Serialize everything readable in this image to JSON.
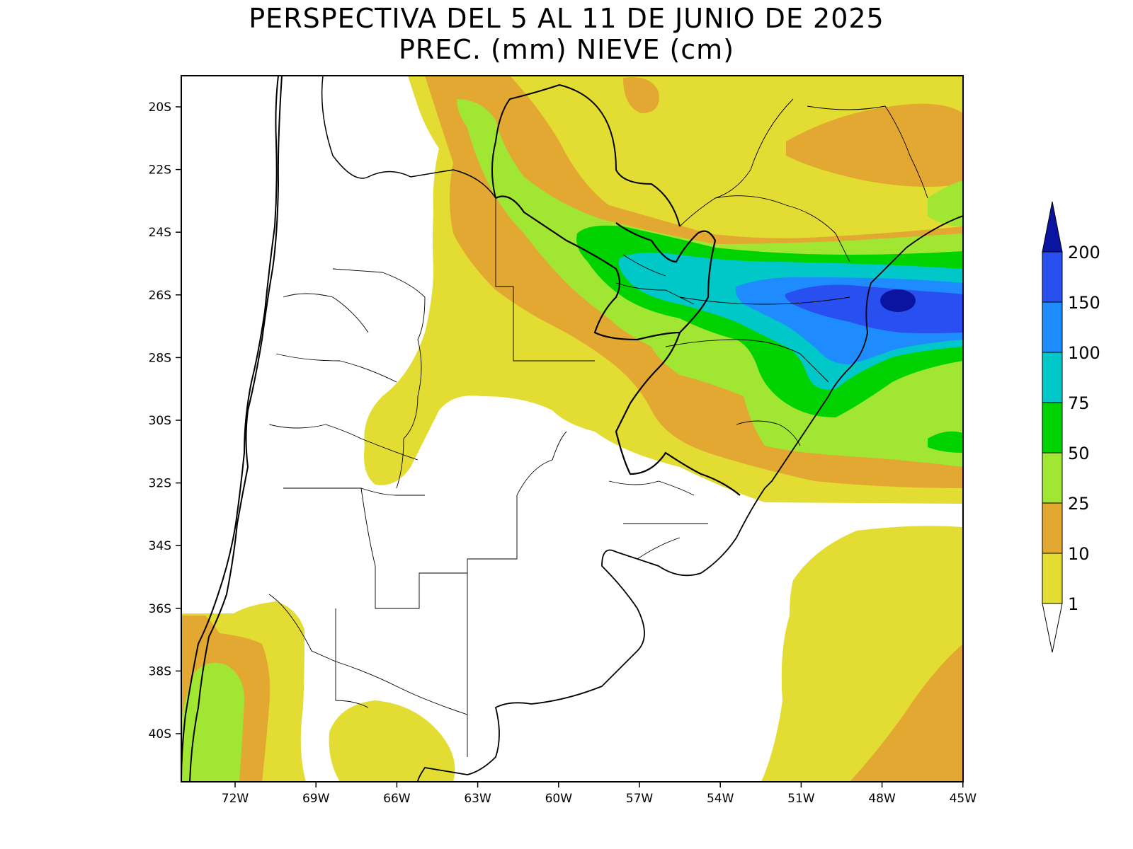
{
  "title": {
    "line1": "PERSPECTIVA DEL 5 AL 11 DE JUNIO DE 2025",
    "line2": "PREC. (mm) NIEVE (cm)"
  },
  "axes": {
    "y_labels": [
      "20S",
      "22S",
      "24S",
      "26S",
      "28S",
      "30S",
      "32S",
      "34S",
      "36S",
      "38S",
      "40S"
    ],
    "x_labels": [
      "72W",
      "69W",
      "66W",
      "63W",
      "60W",
      "57W",
      "54W",
      "51W",
      "48W",
      "45W"
    ],
    "lat_range": [
      "19S",
      "41.5S"
    ],
    "lon_range": [
      "74W",
      "45W"
    ]
  },
  "colorbar": {
    "levels": [
      "1",
      "10",
      "25",
      "50",
      "75",
      "100",
      "150",
      "200"
    ],
    "colors": {
      "1-10": "#e3dc32",
      "10-25": "#e3a832",
      "25-50": "#a0e632",
      "50-75": "#00d200",
      "75-100": "#00c8c8",
      "100-150": "#1e8cff",
      "150-200": "#2850f0",
      "200+": "#0a14a0",
      "below-1": "#ffffff"
    }
  },
  "map": {
    "region": "Southern South America (Argentina, Chile, Uruguay, Paraguay, southern Brazil)",
    "max_precip_area": "Southern Brazil coast near 26S 48W"
  }
}
